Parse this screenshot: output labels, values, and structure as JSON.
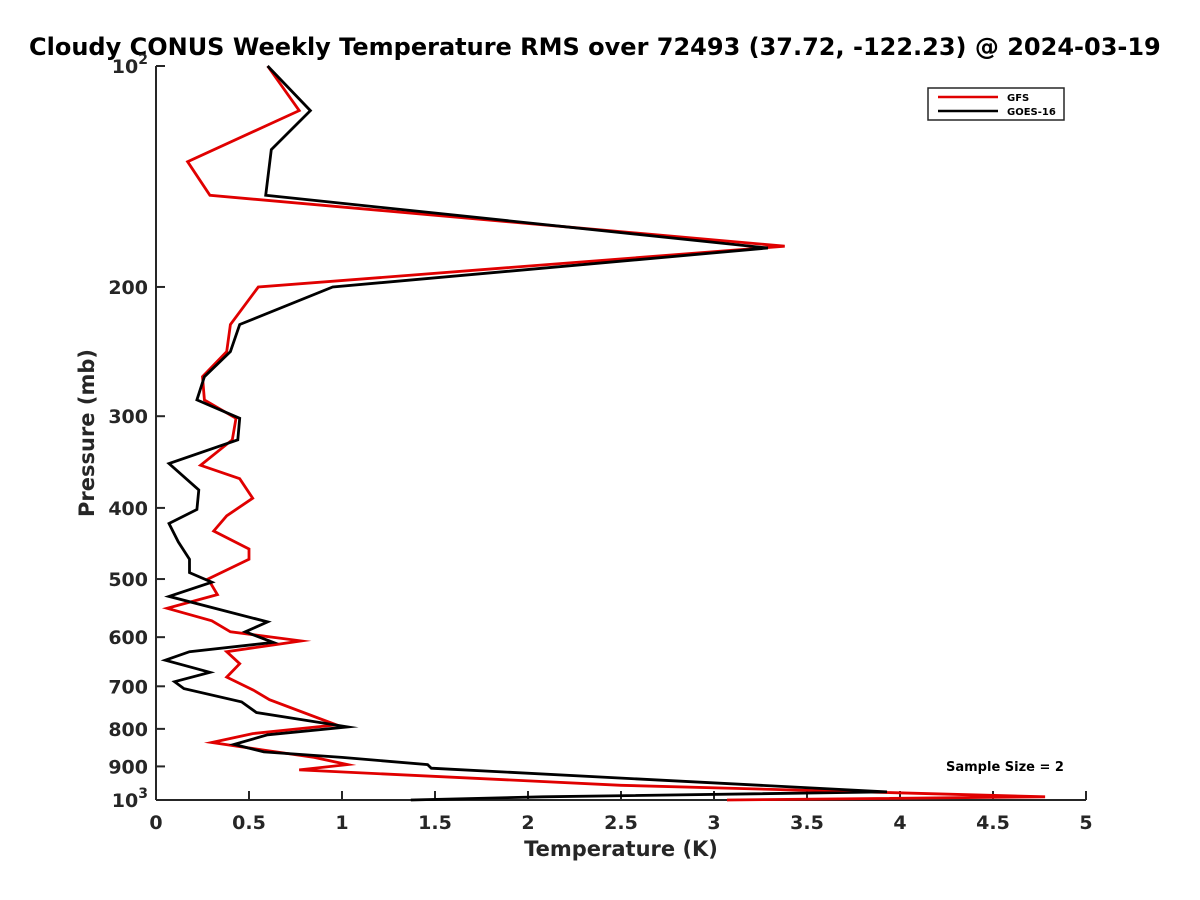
{
  "chart_data": {
    "type": "line",
    "title": "Cloudy CONUS Weekly Temperature RMS over 72493 (37.72, -122.23) @ 2024-03-19",
    "xlabel": "Temperature (K)",
    "ylabel": "Pressure (mb)",
    "xlim": [
      0,
      5
    ],
    "ylim": [
      100,
      1000
    ],
    "y_scale": "log",
    "y_reversed": true,
    "x_ticks": [
      0,
      0.5,
      1,
      1.5,
      2,
      2.5,
      3,
      3.5,
      4,
      4.5,
      5
    ],
    "x_tick_labels": [
      "0",
      "0.5",
      "1",
      "1.5",
      "2",
      "2.5",
      "3",
      "3.5",
      "4",
      "4.5",
      "5"
    ],
    "y_ticks": [
      100,
      200,
      300,
      400,
      500,
      600,
      700,
      800,
      900,
      1000
    ],
    "y_tick_labels": [
      {
        "text": "10",
        "sup": "2"
      },
      {
        "text": "200"
      },
      {
        "text": "300"
      },
      {
        "text": "400"
      },
      {
        "text": "500"
      },
      {
        "text": "600"
      },
      {
        "text": "700"
      },
      {
        "text": "800"
      },
      {
        "text": "900"
      },
      {
        "text": "10",
        "sup": "3"
      }
    ],
    "grid": false,
    "legend_position": "top-right",
    "annotation": "Sample Size = 2",
    "series": [
      {
        "name": "GFS",
        "color": "#e00000",
        "points": [
          [
            0.6,
            100
          ],
          [
            0.77,
            115
          ],
          [
            0.17,
            135
          ],
          [
            0.29,
            150
          ],
          [
            3.38,
            176
          ],
          [
            0.55,
            200
          ],
          [
            0.4,
            225
          ],
          [
            0.38,
            245
          ],
          [
            0.25,
            265
          ],
          [
            0.26,
            285
          ],
          [
            0.43,
            302
          ],
          [
            0.41,
            323
          ],
          [
            0.24,
            350
          ],
          [
            0.45,
            365
          ],
          [
            0.52,
            388
          ],
          [
            0.38,
            410
          ],
          [
            0.31,
            430
          ],
          [
            0.5,
            455
          ],
          [
            0.5,
            470
          ],
          [
            0.28,
            500
          ],
          [
            0.33,
            525
          ],
          [
            0.06,
            548
          ],
          [
            0.3,
            570
          ],
          [
            0.4,
            590
          ],
          [
            0.78,
            607
          ],
          [
            0.38,
            628
          ],
          [
            0.45,
            652
          ],
          [
            0.38,
            680
          ],
          [
            0.53,
            710
          ],
          [
            0.61,
            730
          ],
          [
            0.97,
            790
          ],
          [
            0.52,
            812
          ],
          [
            0.3,
            835
          ],
          [
            0.58,
            855
          ],
          [
            0.85,
            875
          ],
          [
            1.03,
            895
          ],
          [
            0.77,
            910
          ],
          [
            2.5,
            955
          ],
          [
            4.78,
            990
          ],
          [
            3.07,
            1000
          ]
        ]
      },
      {
        "name": "GOES-16",
        "color": "#000000",
        "points": [
          [
            0.6,
            100
          ],
          [
            0.83,
            115
          ],
          [
            0.62,
            130
          ],
          [
            0.59,
            150
          ],
          [
            3.29,
            177
          ],
          [
            0.95,
            200
          ],
          [
            0.45,
            225
          ],
          [
            0.4,
            245
          ],
          [
            0.26,
            265
          ],
          [
            0.22,
            285
          ],
          [
            0.45,
            302
          ],
          [
            0.44,
            323
          ],
          [
            0.07,
            348
          ],
          [
            0.23,
            378
          ],
          [
            0.22,
            402
          ],
          [
            0.07,
            420
          ],
          [
            0.12,
            445
          ],
          [
            0.18,
            470
          ],
          [
            0.18,
            490
          ],
          [
            0.3,
            505
          ],
          [
            0.07,
            528
          ],
          [
            0.6,
            572
          ],
          [
            0.48,
            590
          ],
          [
            0.63,
            610
          ],
          [
            0.18,
            628
          ],
          [
            0.05,
            645
          ],
          [
            0.29,
            670
          ],
          [
            0.1,
            690
          ],
          [
            0.15,
            705
          ],
          [
            0.46,
            735
          ],
          [
            0.54,
            760
          ],
          [
            1.03,
            795
          ],
          [
            0.6,
            815
          ],
          [
            0.42,
            840
          ],
          [
            0.58,
            860
          ],
          [
            1.0,
            875
          ],
          [
            1.46,
            895
          ],
          [
            1.48,
            905
          ],
          [
            3.93,
            975
          ],
          [
            2.08,
            990
          ],
          [
            1.37,
            1000
          ]
        ]
      }
    ]
  },
  "colors": {
    "axis": "#262626",
    "legend_border": "#262626"
  }
}
